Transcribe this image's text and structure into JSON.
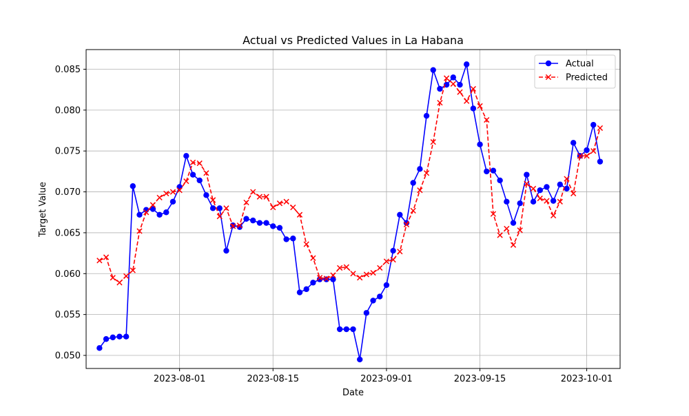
{
  "chart_data": {
    "type": "line",
    "title": "Actual vs Predicted Values in La Habana",
    "xlabel": "Date",
    "ylabel": "Target Value",
    "x_tick_labels": [
      "2023-08-01",
      "2023-08-15",
      "2023-09-01",
      "2023-09-15",
      "2023-10-01"
    ],
    "y_tick_labels": [
      "0.050",
      "0.055",
      "0.060",
      "0.065",
      "0.070",
      "0.075",
      "0.080",
      "0.085"
    ],
    "xlim": [
      "2023-07-18",
      "2023-10-06"
    ],
    "ylim": [
      0.0484,
      0.0874
    ],
    "grid": true,
    "legend_position": "top-right",
    "x": [
      "2023-07-20",
      "2023-07-21",
      "2023-07-22",
      "2023-07-23",
      "2023-07-24",
      "2023-07-25",
      "2023-07-26",
      "2023-07-27",
      "2023-07-28",
      "2023-07-29",
      "2023-07-30",
      "2023-07-31",
      "2023-08-01",
      "2023-08-02",
      "2023-08-03",
      "2023-08-04",
      "2023-08-05",
      "2023-08-06",
      "2023-08-07",
      "2023-08-08",
      "2023-08-09",
      "2023-08-10",
      "2023-08-11",
      "2023-08-12",
      "2023-08-13",
      "2023-08-14",
      "2023-08-15",
      "2023-08-16",
      "2023-08-17",
      "2023-08-18",
      "2023-08-19",
      "2023-08-20",
      "2023-08-21",
      "2023-08-22",
      "2023-08-23",
      "2023-08-24",
      "2023-08-25",
      "2023-08-26",
      "2023-08-27",
      "2023-08-28",
      "2023-08-29",
      "2023-08-30",
      "2023-08-31",
      "2023-09-01",
      "2023-09-02",
      "2023-09-03",
      "2023-09-04",
      "2023-09-05",
      "2023-09-06",
      "2023-09-07",
      "2023-09-08",
      "2023-09-09",
      "2023-09-10",
      "2023-09-11",
      "2023-09-12",
      "2023-09-13",
      "2023-09-14",
      "2023-09-15",
      "2023-09-16",
      "2023-09-17",
      "2023-09-18",
      "2023-09-19",
      "2023-09-20",
      "2023-09-21",
      "2023-09-22",
      "2023-09-23",
      "2023-09-24",
      "2023-09-25",
      "2023-09-26",
      "2023-09-27",
      "2023-09-28",
      "2023-09-29",
      "2023-09-30",
      "2023-10-01",
      "2023-10-02",
      "2023-10-03"
    ],
    "series": [
      {
        "name": "Actual",
        "color": "#0000ff",
        "line_style": "solid",
        "marker": "circle",
        "values": [
          0.0509,
          0.052,
          0.0522,
          0.0523,
          0.0523,
          0.0707,
          0.0672,
          0.0678,
          0.0679,
          0.0672,
          0.0675,
          0.0688,
          0.0706,
          0.0744,
          0.0721,
          0.0714,
          0.0696,
          0.068,
          0.068,
          0.0628,
          0.0659,
          0.0657,
          0.0667,
          0.0665,
          0.0662,
          0.0662,
          0.0658,
          0.0656,
          0.0642,
          0.0643,
          0.0577,
          0.0581,
          0.0589,
          0.0593,
          0.0593,
          0.0593,
          0.0532,
          0.0532,
          0.0532,
          0.0495,
          0.0552,
          0.0567,
          0.0572,
          0.0586,
          0.0628,
          0.0672,
          0.0662,
          0.0711,
          0.0728,
          0.0793,
          0.0849,
          0.0826,
          0.0831,
          0.084,
          0.0831,
          0.0856,
          0.0802,
          0.0758,
          0.0725,
          0.0726,
          0.0714,
          0.0688,
          0.0662,
          0.0686,
          0.0721,
          0.0688,
          0.0702,
          0.0706,
          0.0689,
          0.0709,
          0.0704,
          0.076,
          0.0744,
          0.0751,
          0.0782,
          0.0737
        ]
      },
      {
        "name": "Predicted",
        "color": "#ff0000",
        "line_style": "dashed",
        "marker": "x",
        "values": [
          0.0616,
          0.062,
          0.0595,
          0.0589,
          0.0597,
          0.0604,
          0.0652,
          0.0675,
          0.0684,
          0.0693,
          0.0698,
          0.07,
          0.0702,
          0.0713,
          0.0736,
          0.0735,
          0.0723,
          0.069,
          0.067,
          0.068,
          0.0658,
          0.0659,
          0.0687,
          0.07,
          0.0694,
          0.0694,
          0.0681,
          0.0686,
          0.0688,
          0.0681,
          0.0672,
          0.0636,
          0.0619,
          0.0595,
          0.0594,
          0.0598,
          0.0607,
          0.0608,
          0.06,
          0.0595,
          0.0599,
          0.0601,
          0.0607,
          0.0615,
          0.0617,
          0.0627,
          0.066,
          0.0677,
          0.0702,
          0.0723,
          0.0761,
          0.0809,
          0.0839,
          0.0832,
          0.0822,
          0.0811,
          0.0826,
          0.0805,
          0.0788,
          0.0673,
          0.0647,
          0.0655,
          0.0635,
          0.0653,
          0.071,
          0.0704,
          0.0692,
          0.0689,
          0.0671,
          0.0688,
          0.0716,
          0.0698,
          0.0744,
          0.0744,
          0.075,
          0.0778
        ]
      }
    ]
  }
}
